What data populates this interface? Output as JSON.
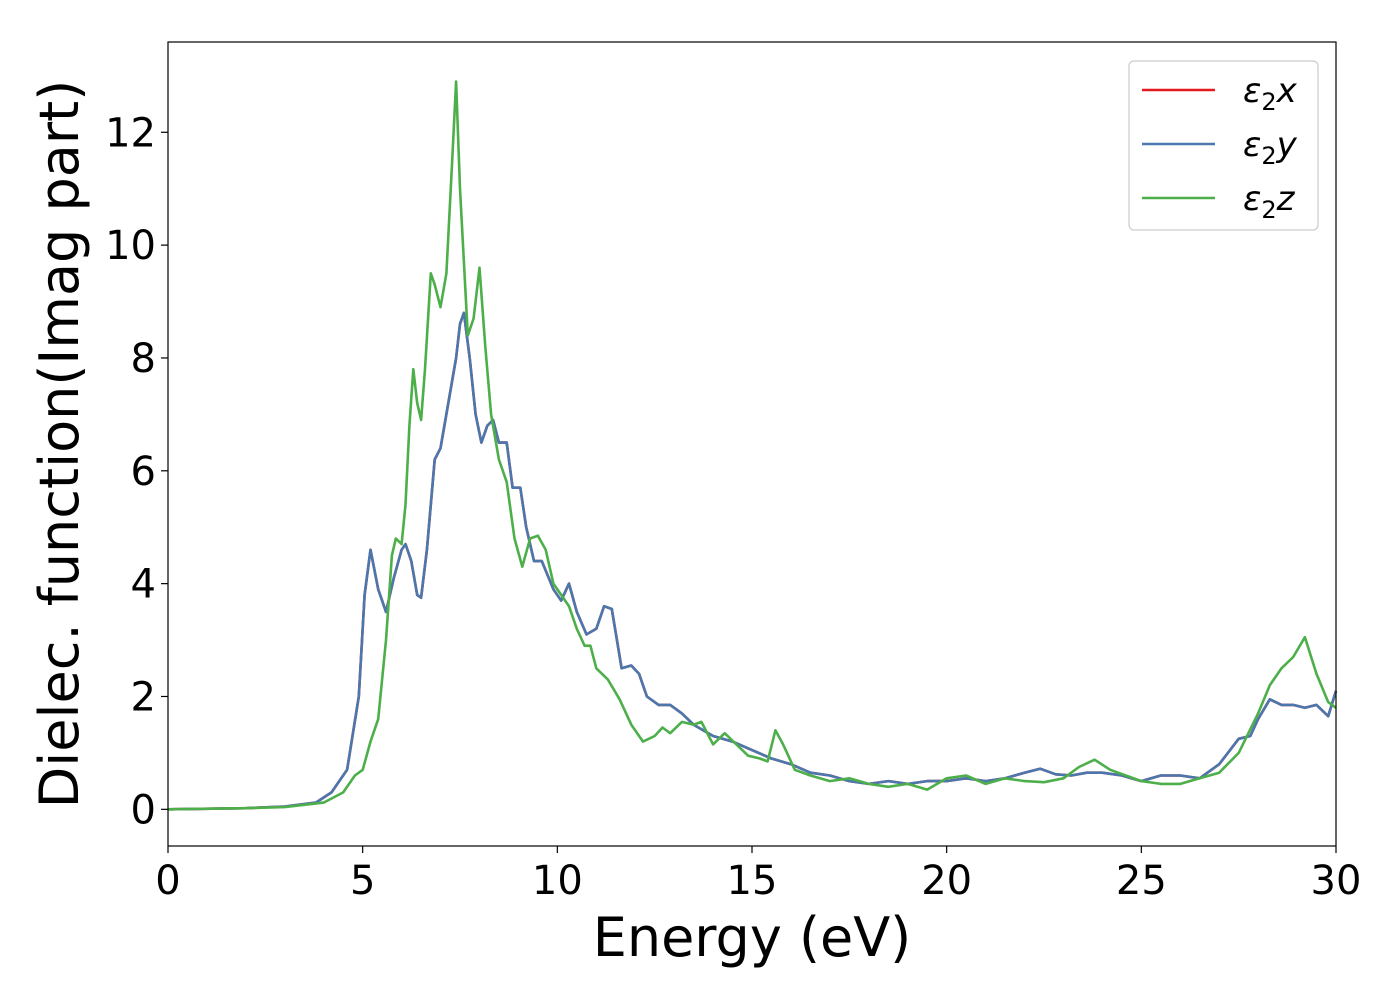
{
  "chart_data": {
    "type": "line",
    "title": "",
    "xlabel": "Energy (eV)",
    "ylabel": "Dielec. function(Imag part)",
    "xlim": [
      0,
      30
    ],
    "ylim": [
      -0.65,
      13.6
    ],
    "xticks": [
      0,
      5,
      10,
      15,
      20,
      25,
      30
    ],
    "yticks": [
      0,
      2,
      4,
      6,
      8,
      10,
      12
    ],
    "grid": false,
    "legend_position": "top-right",
    "series": [
      {
        "name": "ε2x",
        "label_base": "ε",
        "label_sub": "2",
        "label_suffix": "x",
        "color": "#e41a1c",
        "points": [
          [
            0,
            0
          ],
          [
            2,
            0.02
          ],
          [
            3,
            0.05
          ],
          [
            3.8,
            0.12
          ],
          [
            4.2,
            0.3
          ],
          [
            4.6,
            0.7
          ],
          [
            4.9,
            2.0
          ],
          [
            5.05,
            3.8
          ],
          [
            5.2,
            4.6
          ],
          [
            5.4,
            3.9
          ],
          [
            5.6,
            3.5
          ],
          [
            5.8,
            4.1
          ],
          [
            6.0,
            4.6
          ],
          [
            6.1,
            4.7
          ],
          [
            6.25,
            4.4
          ],
          [
            6.4,
            3.8
          ],
          [
            6.5,
            3.75
          ],
          [
            6.65,
            4.6
          ],
          [
            6.85,
            6.2
          ],
          [
            7.0,
            6.4
          ],
          [
            7.2,
            7.2
          ],
          [
            7.4,
            8.0
          ],
          [
            7.5,
            8.6
          ],
          [
            7.6,
            8.8
          ],
          [
            7.75,
            8.0
          ],
          [
            7.9,
            7.0
          ],
          [
            8.05,
            6.5
          ],
          [
            8.2,
            6.8
          ],
          [
            8.35,
            6.9
          ],
          [
            8.5,
            6.5
          ],
          [
            8.7,
            6.5
          ],
          [
            8.85,
            5.7
          ],
          [
            9.05,
            5.7
          ],
          [
            9.2,
            5.0
          ],
          [
            9.4,
            4.4
          ],
          [
            9.6,
            4.4
          ],
          [
            9.9,
            3.9
          ],
          [
            10.1,
            3.7
          ],
          [
            10.3,
            4.0
          ],
          [
            10.5,
            3.5
          ],
          [
            10.75,
            3.1
          ],
          [
            11.0,
            3.2
          ],
          [
            11.2,
            3.6
          ],
          [
            11.4,
            3.55
          ],
          [
            11.65,
            2.5
          ],
          [
            11.9,
            2.55
          ],
          [
            12.1,
            2.4
          ],
          [
            12.3,
            2.0
          ],
          [
            12.6,
            1.85
          ],
          [
            12.9,
            1.85
          ],
          [
            13.2,
            1.7
          ],
          [
            13.5,
            1.5
          ],
          [
            14.0,
            1.3
          ],
          [
            14.5,
            1.2
          ],
          [
            15.0,
            1.05
          ],
          [
            15.5,
            0.9
          ],
          [
            16.0,
            0.8
          ],
          [
            16.5,
            0.65
          ],
          [
            17.0,
            0.6
          ],
          [
            17.5,
            0.5
          ],
          [
            18.0,
            0.45
          ],
          [
            18.5,
            0.5
          ],
          [
            19.0,
            0.45
          ],
          [
            19.5,
            0.5
          ],
          [
            20.0,
            0.5
          ],
          [
            20.5,
            0.55
          ],
          [
            21.0,
            0.5
          ],
          [
            21.5,
            0.55
          ],
          [
            22.0,
            0.65
          ],
          [
            22.4,
            0.72
          ],
          [
            22.8,
            0.62
          ],
          [
            23.2,
            0.6
          ],
          [
            23.6,
            0.65
          ],
          [
            24.0,
            0.65
          ],
          [
            24.5,
            0.6
          ],
          [
            25.0,
            0.5
          ],
          [
            25.5,
            0.6
          ],
          [
            26.0,
            0.6
          ],
          [
            26.5,
            0.55
          ],
          [
            27.0,
            0.8
          ],
          [
            27.5,
            1.25
          ],
          [
            27.8,
            1.3
          ],
          [
            28.0,
            1.6
          ],
          [
            28.3,
            1.95
          ],
          [
            28.6,
            1.85
          ],
          [
            28.9,
            1.85
          ],
          [
            29.2,
            1.8
          ],
          [
            29.5,
            1.85
          ],
          [
            29.8,
            1.65
          ],
          [
            30.0,
            2.1
          ]
        ]
      },
      {
        "name": "ε2y",
        "label_base": "ε",
        "label_sub": "2",
        "label_suffix": "y",
        "color": "#4a77ad",
        "points": [
          [
            0,
            0
          ],
          [
            2,
            0.02
          ],
          [
            3,
            0.05
          ],
          [
            3.8,
            0.12
          ],
          [
            4.2,
            0.3
          ],
          [
            4.6,
            0.7
          ],
          [
            4.9,
            2.0
          ],
          [
            5.05,
            3.8
          ],
          [
            5.2,
            4.6
          ],
          [
            5.4,
            3.9
          ],
          [
            5.6,
            3.5
          ],
          [
            5.8,
            4.1
          ],
          [
            6.0,
            4.6
          ],
          [
            6.1,
            4.7
          ],
          [
            6.25,
            4.4
          ],
          [
            6.4,
            3.8
          ],
          [
            6.5,
            3.75
          ],
          [
            6.65,
            4.6
          ],
          [
            6.85,
            6.2
          ],
          [
            7.0,
            6.4
          ],
          [
            7.2,
            7.2
          ],
          [
            7.4,
            8.0
          ],
          [
            7.5,
            8.6
          ],
          [
            7.6,
            8.8
          ],
          [
            7.75,
            8.0
          ],
          [
            7.9,
            7.0
          ],
          [
            8.05,
            6.5
          ],
          [
            8.2,
            6.8
          ],
          [
            8.35,
            6.9
          ],
          [
            8.5,
            6.5
          ],
          [
            8.7,
            6.5
          ],
          [
            8.85,
            5.7
          ],
          [
            9.05,
            5.7
          ],
          [
            9.2,
            5.0
          ],
          [
            9.4,
            4.4
          ],
          [
            9.6,
            4.4
          ],
          [
            9.9,
            3.9
          ],
          [
            10.1,
            3.7
          ],
          [
            10.3,
            4.0
          ],
          [
            10.5,
            3.5
          ],
          [
            10.75,
            3.1
          ],
          [
            11.0,
            3.2
          ],
          [
            11.2,
            3.6
          ],
          [
            11.4,
            3.55
          ],
          [
            11.65,
            2.5
          ],
          [
            11.9,
            2.55
          ],
          [
            12.1,
            2.4
          ],
          [
            12.3,
            2.0
          ],
          [
            12.6,
            1.85
          ],
          [
            12.9,
            1.85
          ],
          [
            13.2,
            1.7
          ],
          [
            13.5,
            1.5
          ],
          [
            14.0,
            1.3
          ],
          [
            14.5,
            1.2
          ],
          [
            15.0,
            1.05
          ],
          [
            15.5,
            0.9
          ],
          [
            16.0,
            0.8
          ],
          [
            16.5,
            0.65
          ],
          [
            17.0,
            0.6
          ],
          [
            17.5,
            0.5
          ],
          [
            18.0,
            0.45
          ],
          [
            18.5,
            0.5
          ],
          [
            19.0,
            0.45
          ],
          [
            19.5,
            0.5
          ],
          [
            20.0,
            0.5
          ],
          [
            20.5,
            0.55
          ],
          [
            21.0,
            0.5
          ],
          [
            21.5,
            0.55
          ],
          [
            22.0,
            0.65
          ],
          [
            22.4,
            0.72
          ],
          [
            22.8,
            0.62
          ],
          [
            23.2,
            0.6
          ],
          [
            23.6,
            0.65
          ],
          [
            24.0,
            0.65
          ],
          [
            24.5,
            0.6
          ],
          [
            25.0,
            0.5
          ],
          [
            25.5,
            0.6
          ],
          [
            26.0,
            0.6
          ],
          [
            26.5,
            0.55
          ],
          [
            27.0,
            0.8
          ],
          [
            27.5,
            1.25
          ],
          [
            27.8,
            1.3
          ],
          [
            28.0,
            1.6
          ],
          [
            28.3,
            1.95
          ],
          [
            28.6,
            1.85
          ],
          [
            28.9,
            1.85
          ],
          [
            29.2,
            1.8
          ],
          [
            29.5,
            1.85
          ],
          [
            29.8,
            1.65
          ],
          [
            30.0,
            2.1
          ]
        ]
      },
      {
        "name": "ε2z",
        "label_base": "ε",
        "label_sub": "2",
        "label_suffix": "z",
        "color": "#4daf4a",
        "points": [
          [
            0,
            0
          ],
          [
            2,
            0.02
          ],
          [
            3,
            0.04
          ],
          [
            4.0,
            0.12
          ],
          [
            4.5,
            0.3
          ],
          [
            4.8,
            0.6
          ],
          [
            5.0,
            0.7
          ],
          [
            5.2,
            1.2
          ],
          [
            5.4,
            1.6
          ],
          [
            5.6,
            3.0
          ],
          [
            5.75,
            4.5
          ],
          [
            5.85,
            4.8
          ],
          [
            6.0,
            4.7
          ],
          [
            6.1,
            5.4
          ],
          [
            6.2,
            6.8
          ],
          [
            6.3,
            7.8
          ],
          [
            6.4,
            7.2
          ],
          [
            6.5,
            6.9
          ],
          [
            6.6,
            7.8
          ],
          [
            6.75,
            9.5
          ],
          [
            6.85,
            9.3
          ],
          [
            7.0,
            8.9
          ],
          [
            7.15,
            9.5
          ],
          [
            7.3,
            11.5
          ],
          [
            7.4,
            12.9
          ],
          [
            7.5,
            11.0
          ],
          [
            7.7,
            8.4
          ],
          [
            7.85,
            8.7
          ],
          [
            8.0,
            9.6
          ],
          [
            8.15,
            8.2
          ],
          [
            8.3,
            7.0
          ],
          [
            8.5,
            6.2
          ],
          [
            8.7,
            5.8
          ],
          [
            8.9,
            4.8
          ],
          [
            9.1,
            4.3
          ],
          [
            9.3,
            4.8
          ],
          [
            9.5,
            4.85
          ],
          [
            9.7,
            4.6
          ],
          [
            9.9,
            4.0
          ],
          [
            10.1,
            3.8
          ],
          [
            10.3,
            3.6
          ],
          [
            10.5,
            3.2
          ],
          [
            10.7,
            2.9
          ],
          [
            10.85,
            2.9
          ],
          [
            11.0,
            2.5
          ],
          [
            11.3,
            2.3
          ],
          [
            11.6,
            1.95
          ],
          [
            11.9,
            1.5
          ],
          [
            12.2,
            1.2
          ],
          [
            12.5,
            1.3
          ],
          [
            12.7,
            1.45
          ],
          [
            12.9,
            1.35
          ],
          [
            13.2,
            1.55
          ],
          [
            13.5,
            1.5
          ],
          [
            13.7,
            1.55
          ],
          [
            14.0,
            1.15
          ],
          [
            14.3,
            1.35
          ],
          [
            14.6,
            1.15
          ],
          [
            14.9,
            0.95
          ],
          [
            15.2,
            0.9
          ],
          [
            15.4,
            0.85
          ],
          [
            15.6,
            1.4
          ],
          [
            15.8,
            1.15
          ],
          [
            16.1,
            0.7
          ],
          [
            16.5,
            0.6
          ],
          [
            17.0,
            0.5
          ],
          [
            17.5,
            0.55
          ],
          [
            18.0,
            0.45
          ],
          [
            18.5,
            0.4
          ],
          [
            19.0,
            0.45
          ],
          [
            19.5,
            0.35
          ],
          [
            20.0,
            0.55
          ],
          [
            20.5,
            0.6
          ],
          [
            21.0,
            0.45
          ],
          [
            21.5,
            0.55
          ],
          [
            22.0,
            0.5
          ],
          [
            22.5,
            0.48
          ],
          [
            23.0,
            0.55
          ],
          [
            23.4,
            0.75
          ],
          [
            23.8,
            0.88
          ],
          [
            24.2,
            0.7
          ],
          [
            24.6,
            0.6
          ],
          [
            25.0,
            0.5
          ],
          [
            25.5,
            0.45
          ],
          [
            26.0,
            0.45
          ],
          [
            26.5,
            0.55
          ],
          [
            27.0,
            0.65
          ],
          [
            27.5,
            1.0
          ],
          [
            28.0,
            1.7
          ],
          [
            28.3,
            2.2
          ],
          [
            28.6,
            2.5
          ],
          [
            28.9,
            2.7
          ],
          [
            29.2,
            3.05
          ],
          [
            29.5,
            2.4
          ],
          [
            29.8,
            1.9
          ],
          [
            30.0,
            1.8
          ]
        ]
      }
    ]
  }
}
